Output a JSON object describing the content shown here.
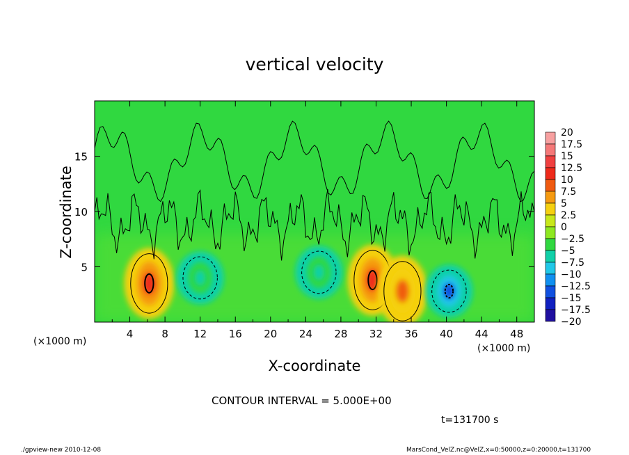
{
  "header": {
    "title": "vertical velocity"
  },
  "footer": {
    "program": "./gpview-new  2010-12-08",
    "source": "MarsCond_VelZ.nc@VelZ,x=0:50000,z=0:20000,t=131700"
  },
  "annotations": {
    "contour_interval": "CONTOUR INTERVAL = 5.000E+00",
    "time": "t=131700 s"
  },
  "chart_data": {
    "type": "heatmap",
    "title": "vertical velocity",
    "xlabel": "X-coordinate",
    "ylabel": "Z-coordinate",
    "x_unit_left": "(×1000 m)",
    "x_unit_right": "(×1000 m)",
    "xlim": [
      0,
      50
    ],
    "ylim": [
      0,
      20
    ],
    "x_ticks": [
      "4",
      "8",
      "12",
      "16",
      "20",
      "24",
      "28",
      "32",
      "36",
      "40",
      "44",
      "48"
    ],
    "y_ticks": [
      "5",
      "10",
      "15"
    ],
    "colorbar": {
      "labels": [
        "20",
        "17.5",
        "15",
        "12.5",
        "10",
        "7.5",
        "5",
        "2.5",
        "0",
        "−2.5",
        "−5",
        "−7.5",
        "−10",
        "−12.5",
        "−15",
        "−17.5",
        "−20"
      ],
      "colors": [
        "#f7a0a0",
        "#f57878",
        "#f04040",
        "#ee2a1a",
        "#f05a10",
        "#f59a10",
        "#f5d010",
        "#c8e81a",
        "#8ee820",
        "#30d840",
        "#10d0a8",
        "#20c8e8",
        "#1090f0",
        "#1050e0",
        "#1020c0",
        "#2010a0",
        "#6010b0"
      ]
    },
    "features": [
      {
        "x": 6.2,
        "z": 3.5,
        "peak": 12
      },
      {
        "x": 31.6,
        "z": 3.8,
        "peak": 12
      },
      {
        "x": 35,
        "z": 2.8,
        "peak": 9
      },
      {
        "x": 12,
        "z": 4,
        "peak": -6
      },
      {
        "x": 25.5,
        "z": 4.5,
        "peak": -6
      },
      {
        "x": 40.3,
        "z": 2.8,
        "peak": -13
      }
    ]
  }
}
